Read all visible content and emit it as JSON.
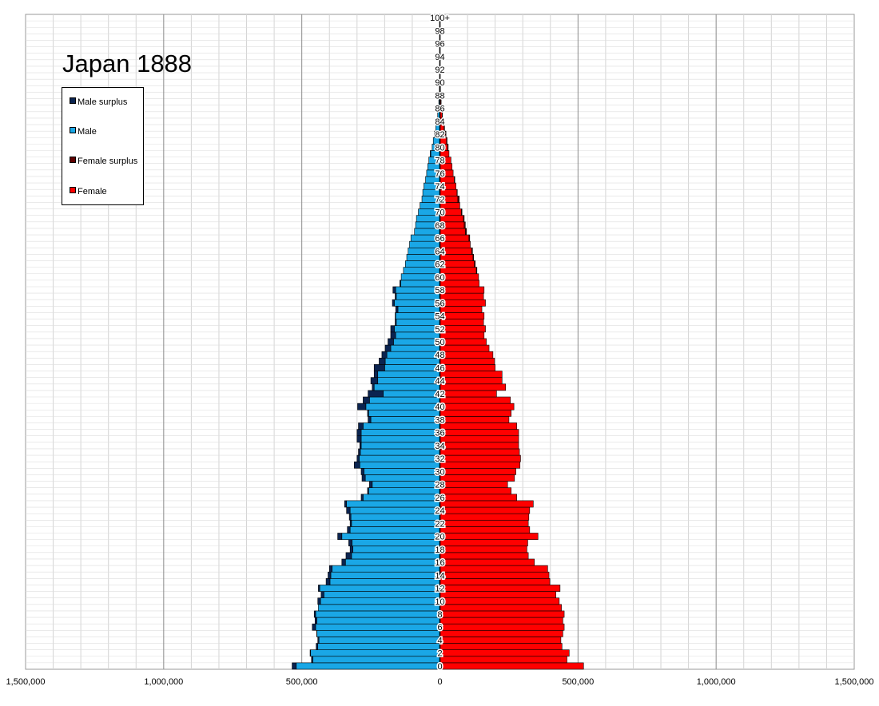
{
  "chart_data": {
    "type": "bar",
    "title": "Japan 1888",
    "orientation": "horizontal-population-pyramid",
    "xlim": [
      -1500000,
      1500000
    ],
    "x_ticks": [
      -1500000,
      -1000000,
      -500000,
      0,
      500000,
      1000000,
      1500000
    ],
    "x_tick_labels": [
      "1,500,000",
      "1,000,000",
      "500,000",
      "0",
      "500,000",
      "1,000,000",
      "1,500,000"
    ],
    "age_labels": [
      "0",
      "2",
      "4",
      "6",
      "8",
      "10",
      "12",
      "14",
      "16",
      "18",
      "20",
      "22",
      "24",
      "26",
      "28",
      "30",
      "32",
      "34",
      "36",
      "38",
      "40",
      "42",
      "44",
      "46",
      "48",
      "50",
      "52",
      "54",
      "56",
      "58",
      "60",
      "62",
      "64",
      "66",
      "68",
      "70",
      "72",
      "74",
      "76",
      "78",
      "80",
      "82",
      "84",
      "86",
      "88",
      "90",
      "92",
      "94",
      "96",
      "98",
      "100+"
    ],
    "grid": true,
    "legend_position": "top-left",
    "legend": [
      {
        "label": "Male surplus",
        "color": "#0b2450"
      },
      {
        "label": "Male",
        "color": "#1aa7e6"
      },
      {
        "label": "Female surplus",
        "color": "#600000"
      },
      {
        "label": "Female",
        "color": "#ff0000"
      }
    ],
    "ages": [
      0,
      1,
      2,
      3,
      4,
      5,
      6,
      7,
      8,
      9,
      10,
      11,
      12,
      13,
      14,
      15,
      16,
      17,
      18,
      19,
      20,
      21,
      22,
      23,
      24,
      25,
      26,
      27,
      28,
      29,
      30,
      31,
      32,
      33,
      34,
      35,
      36,
      37,
      38,
      39,
      40,
      41,
      42,
      43,
      44,
      45,
      46,
      47,
      48,
      49,
      50,
      51,
      52,
      53,
      54,
      55,
      56,
      57,
      58,
      59,
      60,
      61,
      62,
      63,
      64,
      65,
      66,
      67,
      68,
      69,
      70,
      71,
      72,
      73,
      74,
      75,
      76,
      77,
      78,
      79,
      80,
      81,
      82,
      83,
      84,
      85,
      86,
      87,
      88,
      89,
      90,
      91,
      92,
      93,
      94,
      95,
      96,
      97,
      98,
      99,
      100
    ],
    "male": [
      535000,
      465000,
      470000,
      448000,
      442000,
      446000,
      462000,
      452000,
      455000,
      440000,
      442000,
      430000,
      440000,
      412000,
      405000,
      400000,
      355000,
      340000,
      325000,
      330000,
      370000,
      335000,
      325000,
      328000,
      338000,
      345000,
      285000,
      262000,
      255000,
      282000,
      285000,
      310000,
      300000,
      295000,
      290000,
      300000,
      300000,
      295000,
      260000,
      262000,
      298000,
      278000,
      260000,
      245000,
      250000,
      238000,
      238000,
      220000,
      210000,
      198000,
      188000,
      178000,
      178000,
      162000,
      162000,
      160000,
      172000,
      162000,
      170000,
      145000,
      140000,
      132000,
      125000,
      120000,
      115000,
      110000,
      105000,
      92000,
      88000,
      85000,
      78000,
      72000,
      65000,
      62000,
      58000,
      52000,
      48000,
      44000,
      40000,
      35000,
      28000,
      24000,
      20000,
      15000,
      11000,
      8000,
      6000,
      4000,
      2500,
      1500,
      1000,
      600,
      350,
      200,
      100,
      60,
      30,
      15,
      8,
      4,
      2
    ],
    "female": [
      520000,
      460000,
      468000,
      442000,
      438000,
      445000,
      450000,
      445000,
      450000,
      440000,
      432000,
      420000,
      435000,
      398000,
      395000,
      390000,
      342000,
      320000,
      315000,
      318000,
      355000,
      325000,
      320000,
      322000,
      325000,
      338000,
      278000,
      258000,
      245000,
      270000,
      275000,
      290000,
      292000,
      288000,
      285000,
      285000,
      285000,
      278000,
      250000,
      258000,
      268000,
      255000,
      205000,
      238000,
      225000,
      225000,
      200000,
      198000,
      192000,
      178000,
      168000,
      160000,
      165000,
      158000,
      160000,
      152000,
      165000,
      158000,
      160000,
      142000,
      140000,
      134000,
      128000,
      122000,
      118000,
      110000,
      108000,
      96000,
      92000,
      88000,
      80000,
      72000,
      70000,
      63000,
      58000,
      54000,
      48000,
      44000,
      40000,
      33000,
      30000,
      26000,
      22000,
      17000,
      13000,
      9000,
      7000,
      4500,
      3000,
      1800,
      1200,
      700,
      400,
      250,
      120,
      70,
      35,
      18,
      9,
      4,
      2
    ]
  }
}
